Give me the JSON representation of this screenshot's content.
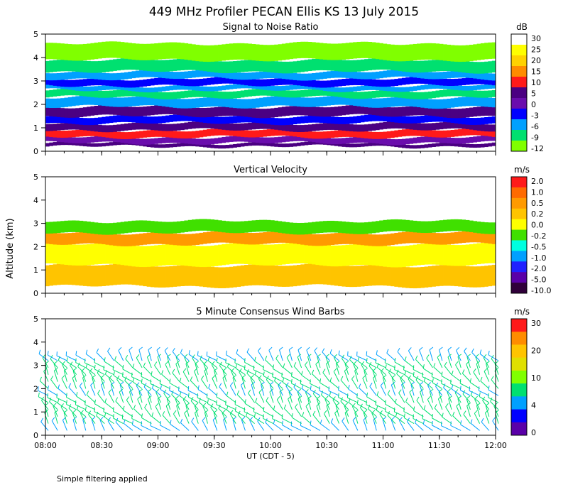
{
  "title": "449 MHz Profiler PECAN Ellis KS 13 July 2015",
  "ylabel": "Altitude (km)",
  "xlabel": "UT  (CDT - 5)",
  "footnote": "Simple filtering applied",
  "x_ticks": [
    "08:00",
    "08:30",
    "09:00",
    "09:30",
    "10:00",
    "10:30",
    "11:00",
    "11:30",
    "12:00"
  ],
  "y_ticks": [
    "0",
    "1",
    "2",
    "3",
    "4",
    "5"
  ],
  "chart_data": [
    {
      "type": "heatmap",
      "title": "Signal to Noise Ratio",
      "unit": "dB",
      "xlim": [
        "08:00",
        "12:00"
      ],
      "ylim": [
        0,
        5
      ],
      "colorbar": {
        "labels": [
          "30",
          "25",
          "20",
          "15",
          "10",
          "5",
          "0",
          "-3",
          "-6",
          "-9",
          "-12"
        ],
        "colors": [
          "#ffffff",
          "#ffff00",
          "#ffd200",
          "#ff8c00",
          "#ff1a1a",
          "#4b0082",
          "#6a0dad",
          "#0000ff",
          "#00a0ff",
          "#00e070",
          "#80ff00"
        ]
      },
      "layers": [
        {
          "ymin": 0.2,
          "ymax": 0.35,
          "value": 5
        },
        {
          "ymin": 0.35,
          "ymax": 0.6,
          "value": 0
        },
        {
          "ymin": 0.6,
          "ymax": 0.9,
          "value": 10
        },
        {
          "ymin": 0.9,
          "ymax": 1.2,
          "value": 5
        },
        {
          "ymin": 1.2,
          "ymax": 1.5,
          "value": -3
        },
        {
          "ymin": 1.5,
          "ymax": 1.9,
          "value": 5
        },
        {
          "ymin": 1.9,
          "ymax": 2.3,
          "value": -6
        },
        {
          "ymin": 2.3,
          "ymax": 2.6,
          "value": -9
        },
        {
          "ymin": 2.6,
          "ymax": 2.8,
          "value": -6
        },
        {
          "ymin": 2.8,
          "ymax": 3.1,
          "value": -3
        },
        {
          "ymin": 3.1,
          "ymax": 3.4,
          "value": -6
        },
        {
          "ymin": 3.4,
          "ymax": 3.9,
          "value": -9
        },
        {
          "ymin": 3.9,
          "ymax": 4.6,
          "value": -12
        }
      ]
    },
    {
      "type": "heatmap",
      "title": "Vertical Velocity",
      "unit": "m/s",
      "xlim": [
        "08:00",
        "12:00"
      ],
      "ylim": [
        0,
        5
      ],
      "colorbar": {
        "labels": [
          "2.0",
          "1.0",
          "0.5",
          "0.2",
          "0.0",
          "-0.2",
          "-0.5",
          "-1.0",
          "-2.0",
          "-5.0",
          "-10.0"
        ],
        "colors": [
          "#ff1a1a",
          "#ff6a00",
          "#ff9a00",
          "#ffc400",
          "#ffff00",
          "#40e000",
          "#00ffe0",
          "#00a0ff",
          "#2020ff",
          "#5a00a8",
          "#30003a"
        ]
      },
      "layers": [
        {
          "ymin": 0.3,
          "ymax": 1.2,
          "value": 0.2
        },
        {
          "ymin": 1.2,
          "ymax": 2.1,
          "value": 0.0
        },
        {
          "ymin": 2.1,
          "ymax": 2.6,
          "value": 0.5
        },
        {
          "ymin": 2.6,
          "ymax": 3.1,
          "value": -0.2
        }
      ]
    },
    {
      "type": "scatter",
      "title": "5 Minute Consensus Wind Barbs",
      "unit": "m/s",
      "xlim": [
        "08:00",
        "12:00"
      ],
      "ylim": [
        0,
        5
      ],
      "colorbar": {
        "labels": [
          "30",
          "20",
          "10",
          "4",
          "0"
        ],
        "colors": [
          "#ff1a1a",
          "#ff8c00",
          "#ffc400",
          "#e0e000",
          "#80ff00",
          "#00e070",
          "#00a0ff",
          "#0000ff",
          "#5a00a8"
        ]
      },
      "height_levels_km": [
        0.2,
        0.5,
        0.8,
        1.1,
        1.4,
        1.7,
        2.0,
        2.3,
        2.6,
        2.9,
        3.2
      ],
      "speed_profile": [
        8,
        10,
        12,
        11,
        10,
        9,
        10,
        11,
        12,
        10,
        9
      ]
    }
  ]
}
